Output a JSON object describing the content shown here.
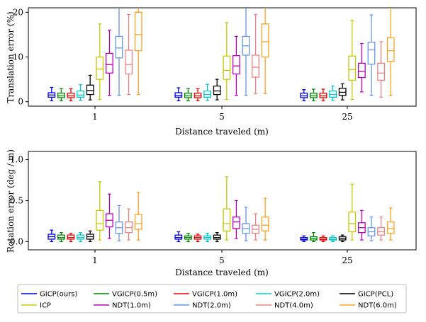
{
  "chart_data": [
    {
      "type": "box",
      "xlabel": "Distance traveled (m)",
      "ylabel": "Translation error (%)",
      "categories": [
        "1",
        "5",
        "25"
      ],
      "ylim": [
        -1,
        21
      ],
      "yticks": [
        0,
        10,
        20
      ],
      "ytick_labels": [
        "0",
        "10",
        "20"
      ],
      "grid": false,
      "series": [
        {
          "name": "GICP(ours)",
          "color": "#0000ee",
          "boxes": [
            {
              "min": 0.2,
              "q1": 1.0,
              "median": 1.5,
              "q3": 2.0,
              "max": 3.2
            },
            {
              "min": 0.2,
              "q1": 1.0,
              "median": 1.4,
              "q3": 2.0,
              "max": 3.1
            },
            {
              "min": 0.2,
              "q1": 0.9,
              "median": 1.3,
              "q3": 1.9,
              "max": 2.7
            }
          ]
        },
        {
          "name": "VGICP(0.5m)",
          "color": "#008800",
          "boxes": [
            {
              "min": 0.2,
              "q1": 0.9,
              "median": 1.3,
              "q3": 1.9,
              "max": 2.9
            },
            {
              "min": 0.2,
              "q1": 0.9,
              "median": 1.3,
              "q3": 1.9,
              "max": 2.9
            },
            {
              "min": 0.2,
              "q1": 0.9,
              "median": 1.3,
              "q3": 1.9,
              "max": 2.8
            }
          ]
        },
        {
          "name": "VGICP(1.0m)",
          "color": "#ee0000",
          "boxes": [
            {
              "min": 0.2,
              "q1": 0.9,
              "median": 1.3,
              "q3": 1.9,
              "max": 2.9
            },
            {
              "min": 0.2,
              "q1": 0.9,
              "median": 1.3,
              "q3": 1.9,
              "max": 2.9
            },
            {
              "min": 0.2,
              "q1": 0.9,
              "median": 1.3,
              "q3": 1.9,
              "max": 2.8
            }
          ]
        },
        {
          "name": "VGICP(2.0m)",
          "color": "#00c8c8",
          "boxes": [
            {
              "min": 0.3,
              "q1": 1.0,
              "median": 1.5,
              "q3": 2.4,
              "max": 3.8
            },
            {
              "min": 0.3,
              "q1": 1.0,
              "median": 1.6,
              "q3": 2.4,
              "max": 3.9
            },
            {
              "min": 0.3,
              "q1": 1.0,
              "median": 1.6,
              "q3": 2.4,
              "max": 3.5
            }
          ]
        },
        {
          "name": "GICP(PCL)",
          "color": "#000000",
          "boxes": [
            {
              "min": 0.4,
              "q1": 1.6,
              "median": 2.5,
              "q3": 3.7,
              "max": 5.9
            },
            {
              "min": 0.4,
              "q1": 1.6,
              "median": 2.4,
              "q3": 3.5,
              "max": 5.0
            },
            {
              "min": 0.4,
              "q1": 1.4,
              "median": 2.1,
              "q3": 3.0,
              "max": 4.0
            }
          ]
        },
        {
          "name": "ICP",
          "color": "#c8c800",
          "boxes": [
            {
              "min": 0.5,
              "q1": 5.0,
              "median": 7.3,
              "q3": 10.0,
              "max": 17.4
            },
            {
              "min": 0.5,
              "q1": 5.0,
              "median": 7.0,
              "q3": 10.2,
              "max": 17.7
            },
            {
              "min": 0.5,
              "q1": 4.8,
              "median": 7.2,
              "q3": 10.2,
              "max": 18.2
            }
          ]
        },
        {
          "name": "NDT(1.0m)",
          "color": "#bb00bb",
          "boxes": [
            {
              "min": 1.4,
              "q1": 6.4,
              "median": 8.3,
              "q3": 10.8,
              "max": 16.0
            },
            {
              "min": 1.4,
              "q1": 6.2,
              "median": 8.0,
              "q3": 10.3,
              "max": 14.6
            },
            {
              "min": 2.2,
              "q1": 5.4,
              "median": 6.8,
              "q3": 8.6,
              "max": 13.0
            }
          ]
        },
        {
          "name": "NDT(2.0m)",
          "color": "#6495ed",
          "boxes": [
            {
              "min": 1.4,
              "q1": 9.8,
              "median": 12.0,
              "q3": 14.6,
              "max": 21.0
            },
            {
              "min": 1.4,
              "q1": 10.4,
              "median": 12.5,
              "q3": 14.6,
              "max": 21.0
            },
            {
              "min": 1.4,
              "q1": 8.4,
              "median": 11.6,
              "q3": 13.3,
              "max": 19.4
            }
          ]
        },
        {
          "name": "NDT(4.0m)",
          "color": "#f08080",
          "boxes": [
            {
              "min": 1.6,
              "q1": 6.2,
              "median": 8.3,
              "q3": 11.5,
              "max": 19.5
            },
            {
              "min": 1.8,
              "q1": 5.5,
              "median": 7.7,
              "q3": 10.4,
              "max": 19.5
            },
            {
              "min": 1.0,
              "q1": 4.8,
              "median": 6.4,
              "q3": 8.6,
              "max": 13.4
            }
          ]
        },
        {
          "name": "NDT(6.0m)",
          "color": "#ffa020",
          "boxes": [
            {
              "min": 1.6,
              "q1": 11.4,
              "median": 15.0,
              "q3": 20.0,
              "max": 21.0
            },
            {
              "min": 1.8,
              "q1": 10.0,
              "median": 13.4,
              "q3": 17.4,
              "max": 21.0
            },
            {
              "min": 1.4,
              "q1": 9.0,
              "median": 11.4,
              "q3": 14.3,
              "max": 21.0
            }
          ]
        }
      ]
    },
    {
      "type": "box",
      "xlabel": "Distance traveled (m)",
      "ylabel": "Rotation error (deg / m)",
      "categories": [
        "1",
        "5",
        "25"
      ],
      "ylim": [
        -0.1,
        1.1
      ],
      "yticks": [
        0.0,
        0.5,
        1.0
      ],
      "ytick_labels": [
        "0.0",
        "0.5",
        "1.0"
      ],
      "grid": false,
      "series": [
        {
          "name": "GICP(ours)",
          "color": "#0000ee",
          "boxes": [
            {
              "min": 0.0,
              "q1": 0.03,
              "median": 0.06,
              "q3": 0.09,
              "max": 0.14
            },
            {
              "min": 0.0,
              "q1": 0.03,
              "median": 0.05,
              "q3": 0.08,
              "max": 0.12
            },
            {
              "min": 0.0,
              "q1": 0.02,
              "median": 0.03,
              "q3": 0.05,
              "max": 0.07
            }
          ]
        },
        {
          "name": "VGICP(0.5m)",
          "color": "#008800",
          "boxes": [
            {
              "min": 0.0,
              "q1": 0.03,
              "median": 0.05,
              "q3": 0.08,
              "max": 0.11
            },
            {
              "min": 0.0,
              "q1": 0.03,
              "median": 0.05,
              "q3": 0.07,
              "max": 0.1
            },
            {
              "min": 0.0,
              "q1": 0.02,
              "median": 0.04,
              "q3": 0.06,
              "max": 0.11
            }
          ]
        },
        {
          "name": "VGICP(1.0m)",
          "color": "#ee0000",
          "boxes": [
            {
              "min": 0.0,
              "q1": 0.03,
              "median": 0.05,
              "q3": 0.08,
              "max": 0.1
            },
            {
              "min": 0.0,
              "q1": 0.03,
              "median": 0.05,
              "q3": 0.07,
              "max": 0.09
            },
            {
              "min": 0.0,
              "q1": 0.02,
              "median": 0.03,
              "q3": 0.05,
              "max": 0.07
            }
          ]
        },
        {
          "name": "VGICP(2.0m)",
          "color": "#00c8c8",
          "boxes": [
            {
              "min": 0.0,
              "q1": 0.03,
              "median": 0.05,
              "q3": 0.08,
              "max": 0.11
            },
            {
              "min": 0.0,
              "q1": 0.03,
              "median": 0.05,
              "q3": 0.07,
              "max": 0.1
            },
            {
              "min": 0.0,
              "q1": 0.02,
              "median": 0.03,
              "q3": 0.05,
              "max": 0.07
            }
          ]
        },
        {
          "name": "GICP(PCL)",
          "color": "#000000",
          "boxes": [
            {
              "min": 0.0,
              "q1": 0.03,
              "median": 0.06,
              "q3": 0.09,
              "max": 0.13
            },
            {
              "min": 0.0,
              "q1": 0.03,
              "median": 0.05,
              "q3": 0.08,
              "max": 0.11
            },
            {
              "min": 0.0,
              "q1": 0.02,
              "median": 0.04,
              "q3": 0.06,
              "max": 0.08
            }
          ]
        },
        {
          "name": "ICP",
          "color": "#c8c800",
          "boxes": [
            {
              "min": 0.02,
              "q1": 0.14,
              "median": 0.22,
              "q3": 0.38,
              "max": 0.73
            },
            {
              "min": 0.02,
              "q1": 0.13,
              "median": 0.22,
              "q3": 0.4,
              "max": 0.79
            },
            {
              "min": 0.02,
              "q1": 0.12,
              "median": 0.22,
              "q3": 0.36,
              "max": 0.7
            }
          ]
        },
        {
          "name": "NDT(1.0m)",
          "color": "#bb00bb",
          "boxes": [
            {
              "min": 0.04,
              "q1": 0.18,
              "median": 0.26,
              "q3": 0.34,
              "max": 0.58
            },
            {
              "min": 0.04,
              "q1": 0.16,
              "median": 0.24,
              "q3": 0.3,
              "max": 0.5
            },
            {
              "min": 0.02,
              "q1": 0.11,
              "median": 0.17,
              "q3": 0.23,
              "max": 0.38
            }
          ]
        },
        {
          "name": "NDT(2.0m)",
          "color": "#6495ed",
          "boxes": [
            {
              "min": 0.01,
              "q1": 0.1,
              "median": 0.17,
              "q3": 0.24,
              "max": 0.44
            },
            {
              "min": 0.01,
              "q1": 0.1,
              "median": 0.16,
              "q3": 0.22,
              "max": 0.42
            },
            {
              "min": 0.01,
              "q1": 0.07,
              "median": 0.12,
              "q3": 0.17,
              "max": 0.3
            }
          ]
        },
        {
          "name": "NDT(4.0m)",
          "color": "#f08080",
          "boxes": [
            {
              "min": 0.02,
              "q1": 0.11,
              "median": 0.17,
              "q3": 0.24,
              "max": 0.4
            },
            {
              "min": 0.02,
              "q1": 0.1,
              "median": 0.15,
              "q3": 0.2,
              "max": 0.34
            },
            {
              "min": 0.02,
              "q1": 0.08,
              "median": 0.12,
              "q3": 0.17,
              "max": 0.3
            }
          ]
        },
        {
          "name": "NDT(6.0m)",
          "color": "#ffa020",
          "boxes": [
            {
              "min": 0.02,
              "q1": 0.15,
              "median": 0.22,
              "q3": 0.33,
              "max": 0.6
            },
            {
              "min": 0.02,
              "q1": 0.13,
              "median": 0.2,
              "q3": 0.3,
              "max": 0.53
            },
            {
              "min": 0.02,
              "q1": 0.1,
              "median": 0.16,
              "q3": 0.24,
              "max": 0.41
            }
          ]
        }
      ]
    }
  ],
  "legend": {
    "placement": "bottom",
    "entries": [
      {
        "name": "GICP(ours)",
        "color": "#0000ee"
      },
      {
        "name": "VGICP(0.5m)",
        "color": "#008800"
      },
      {
        "name": "VGICP(1.0m)",
        "color": "#ee0000"
      },
      {
        "name": "VGICP(2.0m)",
        "color": "#00c8c8"
      },
      {
        "name": "GICP(PCL)",
        "color": "#000000"
      },
      {
        "name": "ICP",
        "color": "#c8c800"
      },
      {
        "name": "NDT(1.0m)",
        "color": "#bb00bb"
      },
      {
        "name": "NDT(2.0m)",
        "color": "#6495ed"
      },
      {
        "name": "NDT(4.0m)",
        "color": "#f08080"
      },
      {
        "name": "NDT(6.0m)",
        "color": "#ffa020"
      }
    ]
  }
}
